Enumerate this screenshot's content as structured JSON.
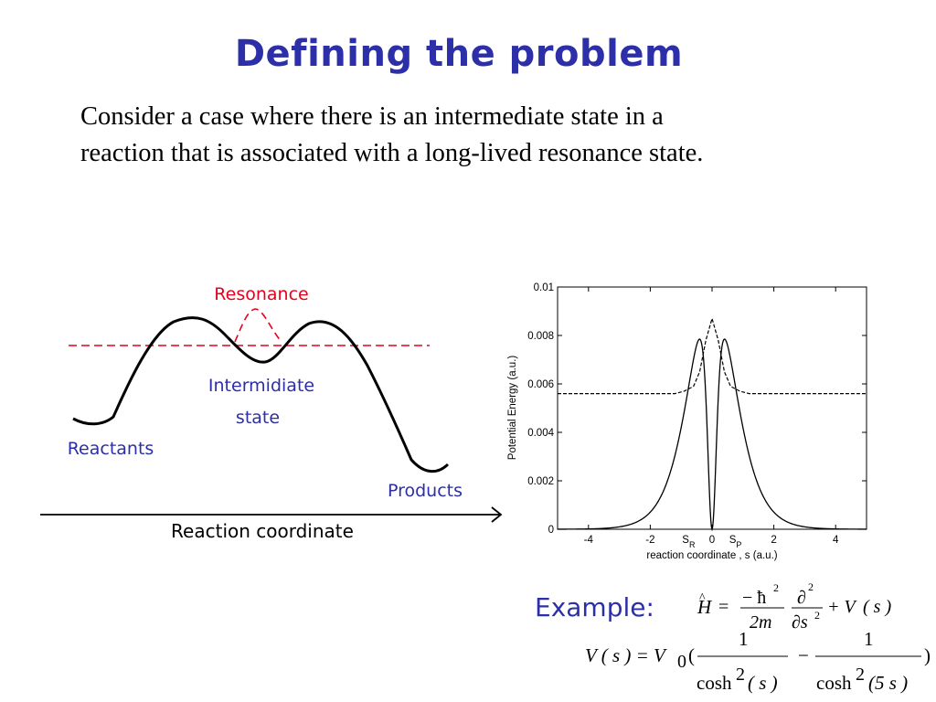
{
  "slide": {
    "title": "Defining the problem",
    "body_lines": [
      "Consider a case where there is an intermediate state in a",
      "reaction that is associated with a long-lived resonance state."
    ]
  },
  "left_diagram": {
    "labels": {
      "resonance": "Resonance",
      "intermediate_line1": "Intermidiate",
      "intermediate_line2": "state",
      "reactants": "Reactants",
      "products": "Products",
      "axis": "Reaction coordinate"
    },
    "colors": {
      "resonance": "#e8001c",
      "labels": "#2c2fa8",
      "curve": "#000000"
    }
  },
  "chart_data": {
    "type": "line",
    "xlabel": "reaction coordinate , s (a.u.)",
    "ylabel": "Potential Energy (a.u.)",
    "xlim": [
      -5,
      5
    ],
    "ylim": [
      0,
      0.01
    ],
    "x_ticks": [
      "-4",
      "-2",
      "0",
      "2",
      "4"
    ],
    "y_ticks": [
      "0",
      "0.002",
      "0.004",
      "0.006",
      "0.008",
      "0.01"
    ],
    "x_markers": [
      {
        "label": "S",
        "sub": "R",
        "x": -0.58
      },
      {
        "label": "S",
        "sub": "P",
        "x": 0.58
      }
    ],
    "series": [
      {
        "style": "solid",
        "formula": "V0*(1/cosh^2(s) - 1/cosh^2(5s))",
        "V0": 0.01
      },
      {
        "style": "dashed",
        "x": [
          -5,
          -1.2,
          -0.9,
          -0.6,
          -0.4,
          -0.2,
          0,
          0.2,
          0.4,
          0.6,
          0.9,
          1.2,
          5
        ],
        "y": [
          0.0056,
          0.0056,
          0.0057,
          0.0059,
          0.0065,
          0.0078,
          0.0087,
          0.0078,
          0.0065,
          0.0059,
          0.0057,
          0.0056,
          0.0056
        ]
      }
    ]
  },
  "example": {
    "label": "Example:",
    "eq1": {
      "H": "H",
      "hat": "^",
      "minus_hbar": "− ħ",
      "sq": "2",
      "two_m": "2m",
      "partial": "∂",
      "partial_s": "∂s",
      "plus_V": "+ V",
      "paren_s": "( s )"
    },
    "eq2": {
      "lhs": "V ( s ) = V",
      "sub0": "0",
      "open": "(",
      "one": "1",
      "minus": "−",
      "cosh": "cosh",
      "sq": "2",
      "arg1": "( s )",
      "arg2": "(5 s )",
      "close": ")"
    }
  }
}
